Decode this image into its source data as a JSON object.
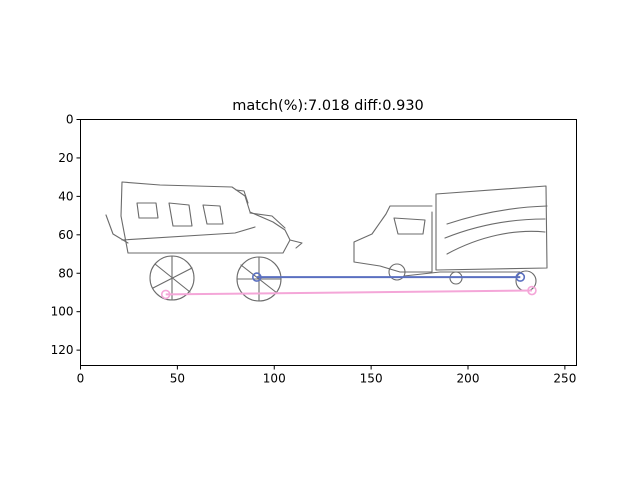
{
  "chart_data": {
    "type": "image",
    "title": "match(%):7.018 diff:0.930",
    "x_ticks": [
      0,
      50,
      100,
      150,
      200,
      250
    ],
    "y_ticks": [
      0,
      20,
      40,
      60,
      80,
      100,
      120
    ],
    "xlim": [
      0,
      256
    ],
    "ylim": [
      128,
      0
    ],
    "y_inverted": true,
    "grid": false,
    "image_content": "two hand-drawn vehicle sketches (a bus on the left, a truck on the right)",
    "series": [
      {
        "color": "#5a6fc0",
        "points": [
          [
            91,
            82
          ],
          [
            227,
            82
          ]
        ],
        "marker_points": [
          [
            91,
            82
          ],
          [
            227,
            82
          ]
        ]
      },
      {
        "color": "#f4a6d8",
        "points": [
          [
            44,
            91
          ],
          [
            233,
            89
          ]
        ],
        "marker_points": [
          [
            44,
            91
          ],
          [
            233,
            89
          ]
        ]
      }
    ],
    "colors": {
      "axes": "#000000",
      "sketch": "#6b6b6b"
    }
  }
}
